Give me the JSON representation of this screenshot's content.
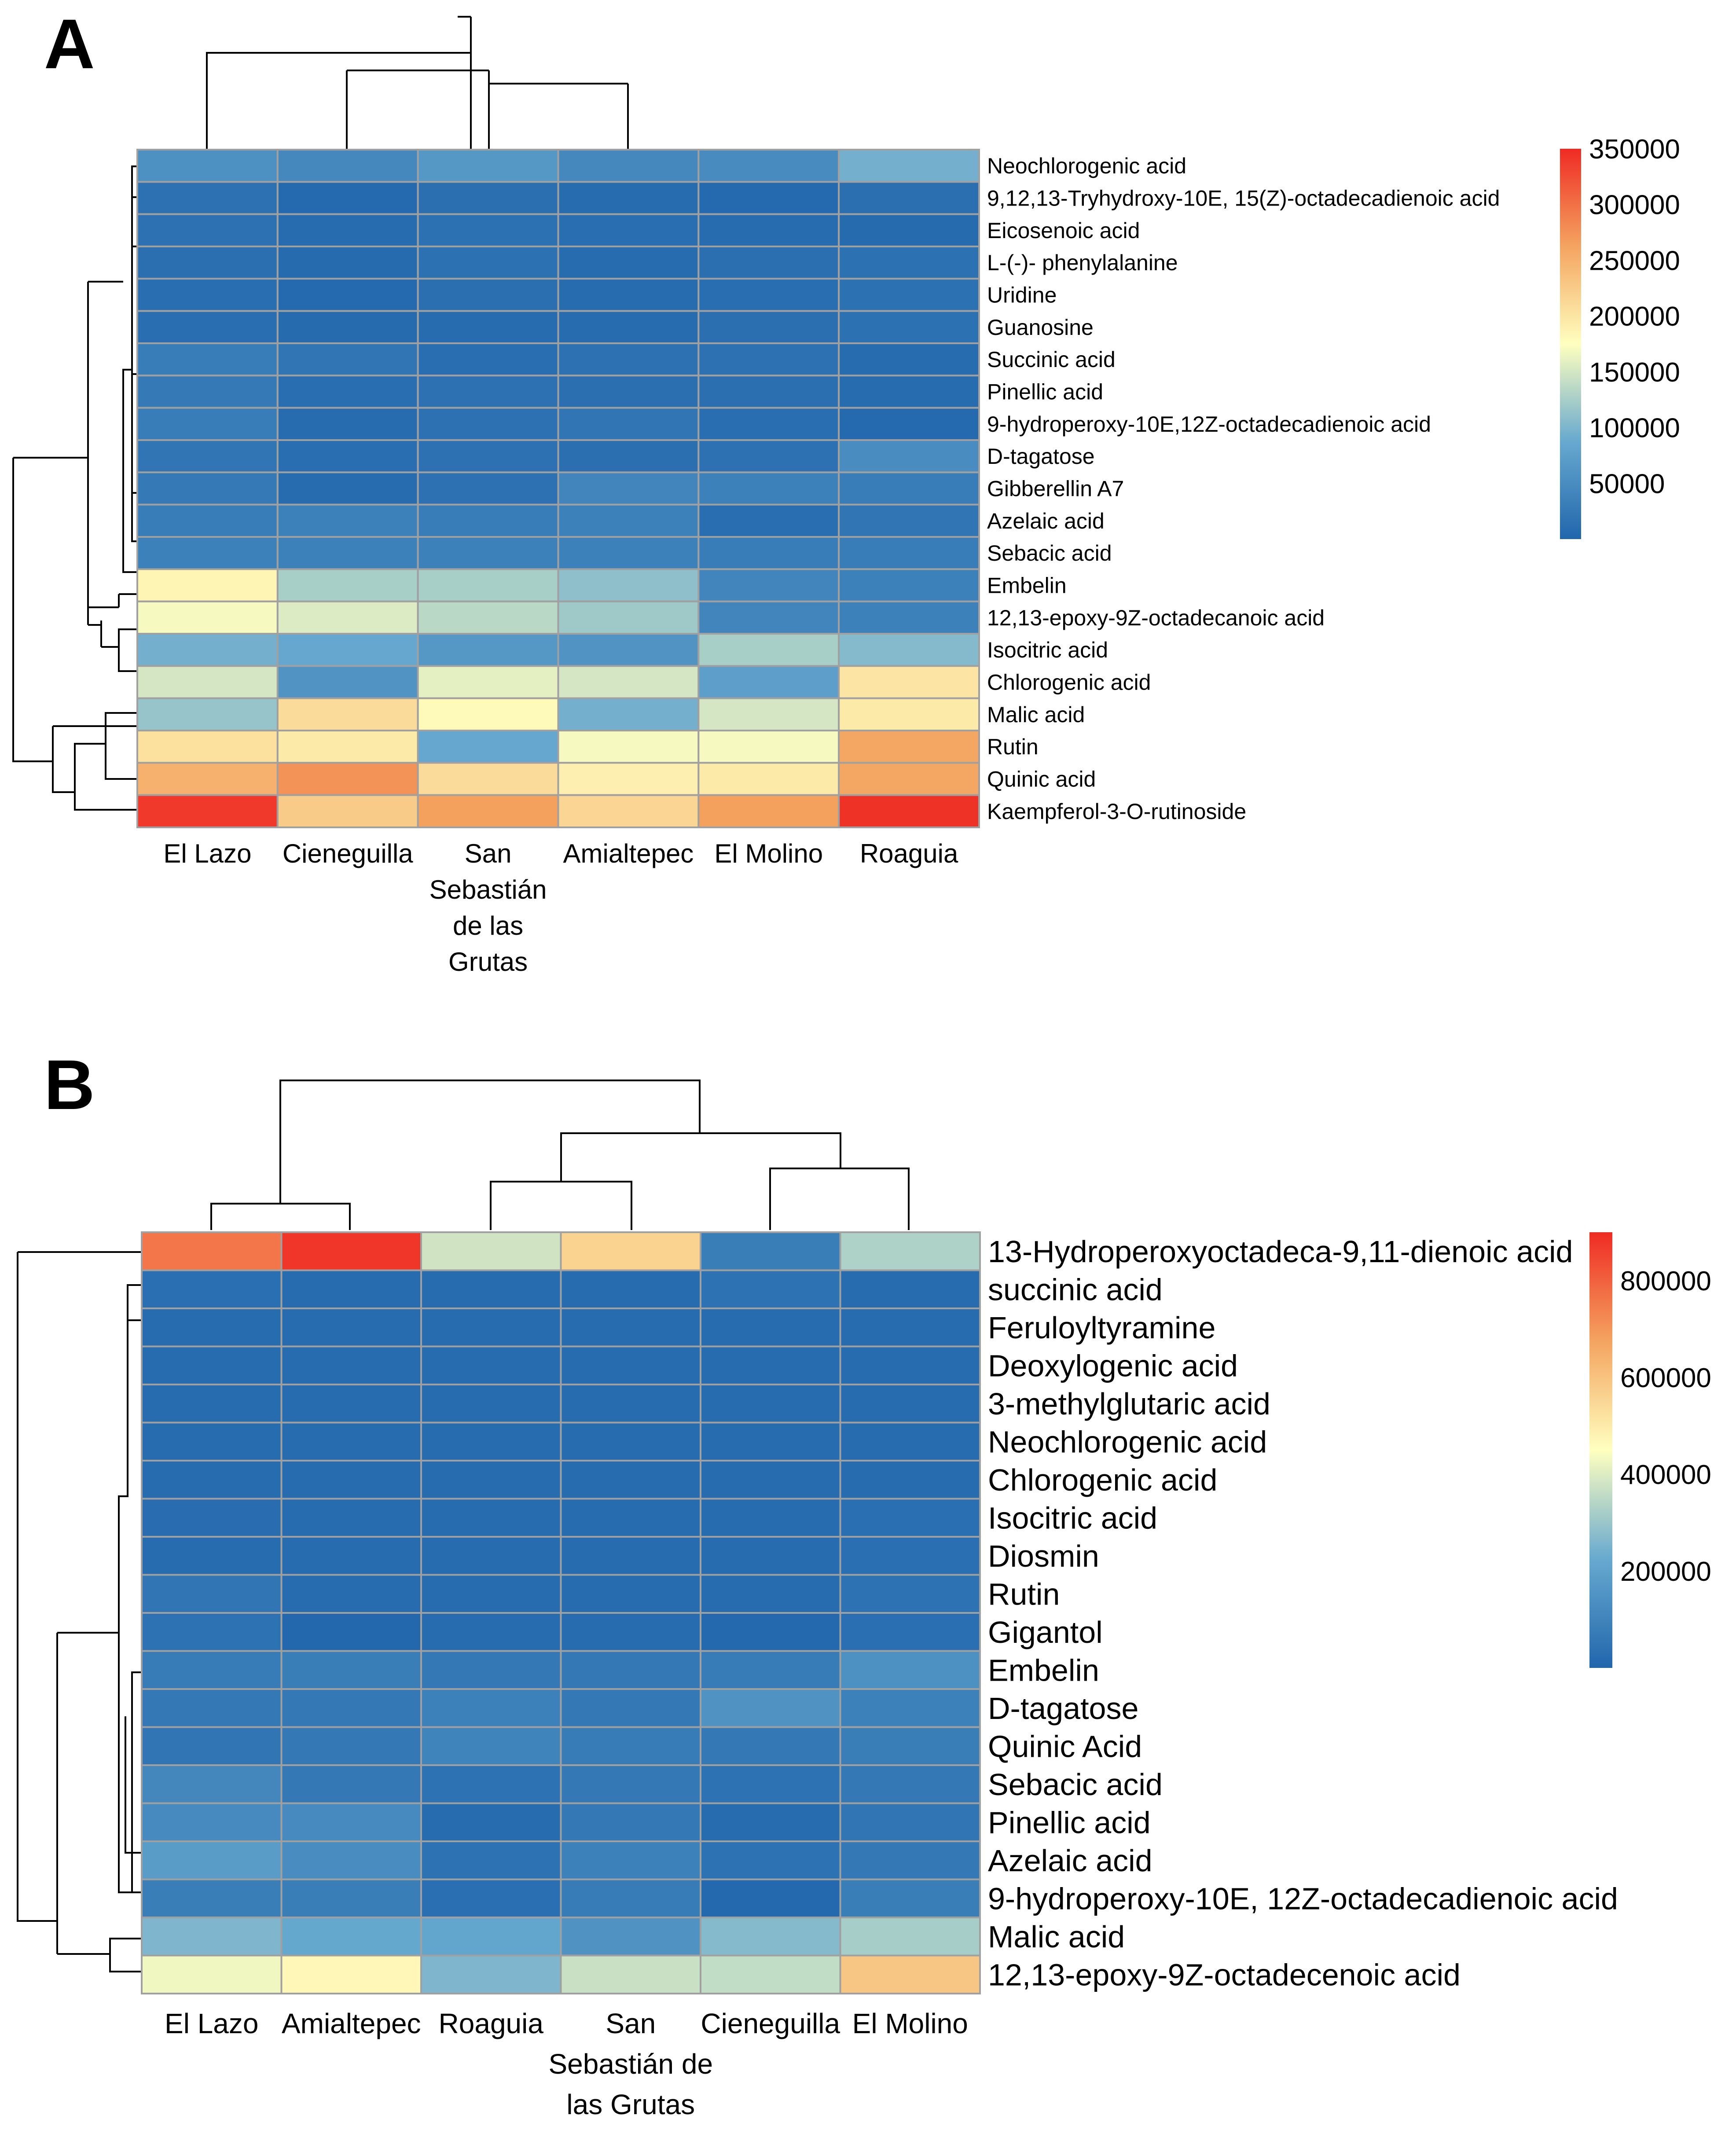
{
  "colors": {
    "low": "#2166ac",
    "mid": "#ffffbf",
    "high": "#d73027"
  },
  "chart_data": [
    {
      "type": "heatmap",
      "panel": "A",
      "columns": [
        "El Lazo",
        "Cieneguilla",
        "San Sebastián de las Grutas",
        "Amialtepec",
        "El Molino",
        "Roaguia"
      ],
      "column_label_lines": [
        [
          "El Lazo"
        ],
        [
          "Cieneguilla"
        ],
        [
          "San",
          "Sebastián",
          "de las",
          "Grutas"
        ],
        [
          "Amialtepec"
        ],
        [
          "El Molino"
        ],
        [
          "Roaguia"
        ]
      ],
      "rows": [
        "Neochlorogenic acid",
        "9,12,13-Tryhydroxy-10E, 15(Z)-octadecadienoic acid",
        "Eicosenoic acid",
        "L-(-)- phenylalanine",
        "Uridine",
        "Guanosine",
        "Succinic acid",
        "Pinellic acid",
        "9-hydroperoxy-10E,12Z-octadecadienoic acid",
        "D-tagatose",
        "Gibberellin A7",
        "Azelaic acid",
        "Sebacic acid",
        "Embelin",
        "12,13-epoxy-9Z-octadecanoic acid",
        "Isocitric acid",
        "Chlorogenic acid",
        "Malic acid",
        "Rutin",
        "Quinic acid",
        "Kaempferol-3-O-rutinoside"
      ],
      "values": [
        [
          55000,
          45000,
          65000,
          45000,
          48000,
          95000
        ],
        [
          15000,
          5000,
          12000,
          8000,
          5000,
          12000
        ],
        [
          15000,
          8000,
          14000,
          10000,
          8000,
          6000
        ],
        [
          12000,
          6000,
          14000,
          8000,
          12000,
          14000
        ],
        [
          10000,
          5000,
          12000,
          8000,
          10000,
          14000
        ],
        [
          10000,
          6000,
          8000,
          8000,
          12000,
          14000
        ],
        [
          30000,
          20000,
          10000,
          15000,
          15000,
          8000
        ],
        [
          25000,
          10000,
          15000,
          12000,
          12000,
          8000
        ],
        [
          30000,
          8000,
          15000,
          20000,
          10000,
          5000
        ],
        [
          20000,
          10000,
          15000,
          12000,
          15000,
          50000
        ],
        [
          25000,
          8000,
          15000,
          40000,
          35000,
          30000
        ],
        [
          30000,
          35000,
          30000,
          35000,
          10000,
          20000
        ],
        [
          35000,
          35000,
          35000,
          35000,
          30000,
          30000
        ],
        [
          185000,
          125000,
          125000,
          110000,
          40000,
          35000
        ],
        [
          170000,
          155000,
          135000,
          120000,
          40000,
          35000
        ],
        [
          95000,
          85000,
          65000,
          60000,
          125000,
          105000
        ],
        [
          150000,
          60000,
          160000,
          150000,
          75000,
          200000
        ],
        [
          115000,
          210000,
          180000,
          95000,
          150000,
          195000
        ],
        [
          205000,
          195000,
          85000,
          170000,
          170000,
          260000
        ],
        [
          250000,
          275000,
          210000,
          190000,
          195000,
          260000
        ],
        [
          340000,
          225000,
          265000,
          215000,
          265000,
          345000
        ]
      ],
      "legend": {
        "max": 350000,
        "min": 0,
        "ticks": [
          350000,
          300000,
          250000,
          200000,
          150000,
          100000,
          50000
        ],
        "tick_labels": [
          "350000",
          "300000",
          "250000",
          "200000",
          "150000",
          "100000",
          "50000"
        ]
      }
    },
    {
      "type": "heatmap",
      "panel": "B",
      "columns": [
        "El Lazo",
        "Amialtepec",
        "Roaguia",
        "San Sebastián de las Grutas",
        "Cieneguilla",
        "El Molino"
      ],
      "column_label_lines": [
        [
          "El Lazo"
        ],
        [
          "Amialtepec"
        ],
        [
          "Roaguia"
        ],
        [
          "San",
          "Sebastián de",
          "las Grutas"
        ],
        [
          "Cieneguilla"
        ],
        [
          "El Molino"
        ]
      ],
      "rows": [
        "13-Hydroperoxyoctadeca-9,11-dienoic acid",
        "succinic acid",
        "Feruloyltyramine",
        "Deoxylogenic acid",
        "3-methylglutaric acid",
        "Neochlorogenic acid",
        "Chlorogenic acid",
        "Isocitric acid",
        "Diosmin",
        "Rutin",
        "Gigantol",
        "Embelin",
        "D-tagatose",
        "Quinic Acid",
        "Sebacic acid",
        "Pinellic acid",
        "Azelaic acid",
        "9-hydroperoxy-10E, 12Z-octadecadienoic acid",
        "Malic acid",
        "12,13-epoxy-9Z-octadecenoic acid"
      ],
      "values": [
        [
          760000,
          880000,
          380000,
          560000,
          80000,
          330000
        ],
        [
          30000,
          20000,
          20000,
          20000,
          40000,
          20000
        ],
        [
          20000,
          20000,
          20000,
          20000,
          20000,
          20000
        ],
        [
          20000,
          20000,
          20000,
          20000,
          20000,
          20000
        ],
        [
          20000,
          20000,
          20000,
          20000,
          20000,
          20000
        ],
        [
          20000,
          20000,
          20000,
          20000,
          20000,
          20000
        ],
        [
          20000,
          20000,
          20000,
          20000,
          20000,
          20000
        ],
        [
          25000,
          20000,
          20000,
          20000,
          20000,
          30000
        ],
        [
          20000,
          20000,
          20000,
          20000,
          20000,
          30000
        ],
        [
          50000,
          20000,
          20000,
          20000,
          20000,
          40000
        ],
        [
          40000,
          5000,
          20000,
          20000,
          10000,
          30000
        ],
        [
          70000,
          80000,
          60000,
          60000,
          70000,
          140000
        ],
        [
          60000,
          60000,
          90000,
          60000,
          150000,
          90000
        ],
        [
          50000,
          60000,
          100000,
          70000,
          60000,
          80000
        ],
        [
          110000,
          60000,
          40000,
          60000,
          40000,
          60000
        ],
        [
          120000,
          120000,
          20000,
          60000,
          20000,
          50000
        ],
        [
          180000,
          130000,
          40000,
          90000,
          40000,
          60000
        ],
        [
          80000,
          80000,
          30000,
          70000,
          10000,
          80000
        ],
        [
          260000,
          220000,
          210000,
          150000,
          270000,
          320000
        ],
        [
          430000,
          470000,
          260000,
          370000,
          360000,
          590000
        ]
      ],
      "legend": {
        "max": 900000,
        "min": 0,
        "ticks": [
          800000,
          600000,
          400000,
          200000
        ],
        "tick_labels": [
          "800000",
          "600000",
          "400000",
          "200000"
        ]
      }
    }
  ],
  "panels": {
    "a_letter": "A",
    "b_letter": "B"
  }
}
